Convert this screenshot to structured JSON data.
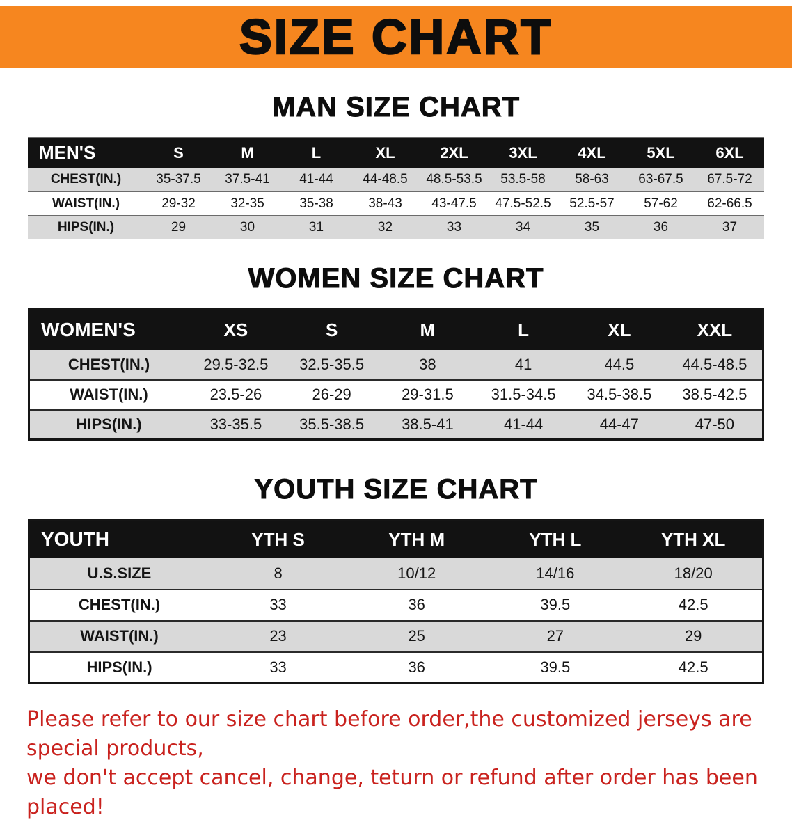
{
  "banner": {
    "title": "SIZE CHART",
    "bg_color": "#F6861F",
    "text_color": "#0D0D0D"
  },
  "chart_data": [
    {
      "type": "table",
      "title": "MAN SIZE CHART",
      "columns": [
        "MEN'S",
        "S",
        "M",
        "L",
        "XL",
        "2XL",
        "3XL",
        "4XL",
        "5XL",
        "6XL"
      ],
      "rows": [
        [
          "CHEST(IN.)",
          "35-37.5",
          "37.5-41",
          "41-44",
          "44-48.5",
          "48.5-53.5",
          "53.5-58",
          "58-63",
          "63-67.5",
          "67.5-72"
        ],
        [
          "WAIST(IN.)",
          "29-32",
          "32-35",
          "35-38",
          "38-43",
          "43-47.5",
          "47.5-52.5",
          "52.5-57",
          "57-62",
          "62-66.5"
        ],
        [
          "HIPS(IN.)",
          "29",
          "30",
          "31",
          "32",
          "33",
          "34",
          "35",
          "36",
          "37"
        ]
      ]
    },
    {
      "type": "table",
      "title": "WOMEN SIZE CHART",
      "columns": [
        "WOMEN'S",
        "XS",
        "S",
        "M",
        "L",
        "XL",
        "XXL"
      ],
      "rows": [
        [
          "CHEST(IN.)",
          "29.5-32.5",
          "32.5-35.5",
          "38",
          "41",
          "44.5",
          "44.5-48.5"
        ],
        [
          "WAIST(IN.)",
          "23.5-26",
          "26-29",
          "29-31.5",
          "31.5-34.5",
          "34.5-38.5",
          "38.5-42.5"
        ],
        [
          "HIPS(IN.)",
          "33-35.5",
          "35.5-38.5",
          "38.5-41",
          "41-44",
          "44-47",
          "47-50"
        ]
      ]
    },
    {
      "type": "table",
      "title": "YOUTH SIZE CHART",
      "columns": [
        "YOUTH",
        "YTH S",
        "YTH M",
        "YTH L",
        "YTH XL"
      ],
      "rows": [
        [
          "U.S.SIZE",
          "8",
          "10/12",
          "14/16",
          "18/20"
        ],
        [
          "CHEST(IN.)",
          "33",
          "36",
          "39.5",
          "42.5"
        ],
        [
          "WAIST(IN.)",
          "23",
          "25",
          "27",
          "29"
        ],
        [
          "HIPS(IN.)",
          "33",
          "36",
          "39.5",
          "42.5"
        ]
      ]
    }
  ],
  "footer": {
    "line1": "Please refer to our size chart before order,the customized jerseys are special products,",
    "line2": "we don't accept cancel, change, teturn or refund after order has been placed!",
    "text_color": "#C9221E"
  }
}
